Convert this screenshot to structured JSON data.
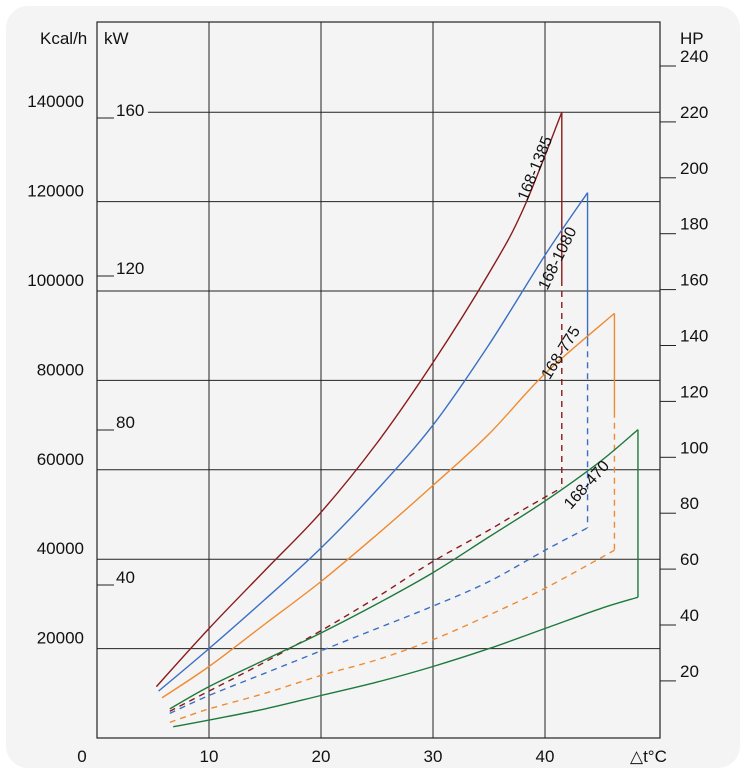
{
  "chart_data": {
    "type": "line",
    "x_axis": {
      "label": "△t°C",
      "ticks": [
        10,
        20,
        30,
        40
      ],
      "range": [
        0,
        50
      ]
    },
    "left_axis_kcal": {
      "unit": "Kcal/h",
      "ticks": [
        "140000",
        "120000",
        "100000",
        "80000",
        "60000",
        "40000",
        "20000"
      ],
      "range": [
        0,
        160000
      ]
    },
    "left_axis_kw": {
      "unit": "kW",
      "ticks": [
        "160",
        "120",
        "80",
        "40"
      ]
    },
    "right_axis_hp": {
      "unit": "HP",
      "ticks": [
        "240",
        "220",
        "200",
        "180",
        "160",
        "140",
        "120",
        "100",
        "80",
        "60",
        "40",
        "20"
      ]
    },
    "origin_label": "0",
    "grid": true,
    "series": [
      {
        "name": "168-1385",
        "color": "#8b1a1a",
        "upper": [
          [
            5.3,
            11500
          ],
          [
            10,
            24500
          ],
          [
            15,
            37500
          ],
          [
            20,
            50500
          ],
          [
            25,
            66000
          ],
          [
            30,
            84000
          ],
          [
            35,
            104000
          ],
          [
            38,
            118000
          ],
          [
            41.5,
            140000
          ]
        ],
        "lower": [
          [
            6.5,
            6000
          ],
          [
            10,
            10500
          ],
          [
            15,
            17000
          ],
          [
            20,
            24000
          ],
          [
            25,
            31500
          ],
          [
            30,
            39500
          ],
          [
            35,
            46500
          ],
          [
            38,
            51000
          ],
          [
            41.5,
            56000
          ]
        ]
      },
      {
        "name": "168-1080",
        "color": "#3a6fc4",
        "upper": [
          [
            5.5,
            10500
          ],
          [
            10,
            20000
          ],
          [
            15,
            31000
          ],
          [
            20,
            42500
          ],
          [
            25,
            55500
          ],
          [
            30,
            70000
          ],
          [
            35,
            88000
          ],
          [
            40,
            108000
          ],
          [
            43.8,
            122000
          ]
        ],
        "lower": [
          [
            6.5,
            5500
          ],
          [
            10,
            9500
          ],
          [
            15,
            14500
          ],
          [
            20,
            19500
          ],
          [
            25,
            24500
          ],
          [
            30,
            29500
          ],
          [
            35,
            35000
          ],
          [
            40,
            42000
          ],
          [
            43.8,
            47000
          ]
        ]
      },
      {
        "name": "168-775",
        "color": "#f08a30",
        "upper": [
          [
            5.8,
            9000
          ],
          [
            10,
            16000
          ],
          [
            15,
            25500
          ],
          [
            20,
            35000
          ],
          [
            25,
            45500
          ],
          [
            30,
            56500
          ],
          [
            35,
            68000
          ],
          [
            40,
            81500
          ],
          [
            46.2,
            95000
          ]
        ],
        "lower": [
          [
            6.5,
            3500
          ],
          [
            10,
            6500
          ],
          [
            15,
            10000
          ],
          [
            20,
            14000
          ],
          [
            25,
            17500
          ],
          [
            30,
            22000
          ],
          [
            35,
            27500
          ],
          [
            40,
            33500
          ],
          [
            46.2,
            42000
          ]
        ]
      },
      {
        "name": "168-470",
        "color": "#1e7a3c",
        "upper": [
          [
            6.5,
            6500
          ],
          [
            10,
            11500
          ],
          [
            15,
            17500
          ],
          [
            20,
            23500
          ],
          [
            25,
            30000
          ],
          [
            30,
            37000
          ],
          [
            35,
            45000
          ],
          [
            40,
            53000
          ],
          [
            45,
            62000
          ],
          [
            48.3,
            69000
          ]
        ],
        "lower": [
          [
            6.8,
            2500
          ],
          [
            10,
            4000
          ],
          [
            15,
            6500
          ],
          [
            20,
            9500
          ],
          [
            25,
            12500
          ],
          [
            30,
            16000
          ],
          [
            35,
            20000
          ],
          [
            40,
            24500
          ],
          [
            45,
            29000
          ],
          [
            48.3,
            31500
          ]
        ]
      }
    ]
  }
}
